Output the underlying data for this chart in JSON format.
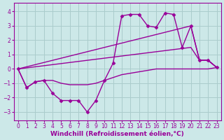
{
  "bg_color": "#cce8e8",
  "grid_color": "#aacccc",
  "line_color": "#990099",
  "markersize": 2.5,
  "linewidth": 1.0,
  "xlabel": "Windchill (Refroidissement éolien,°C)",
  "xlabel_fontsize": 6.5,
  "tick_fontsize": 5.5,
  "ylim": [
    -3.6,
    4.6
  ],
  "xlim": [
    -0.5,
    23.5
  ],
  "yticks": [
    -3,
    -2,
    -1,
    0,
    1,
    2,
    3,
    4
  ],
  "xticks": [
    0,
    1,
    2,
    3,
    4,
    5,
    6,
    7,
    8,
    9,
    10,
    11,
    12,
    13,
    14,
    15,
    16,
    17,
    18,
    19,
    20,
    21,
    22,
    23
  ],
  "lines": [
    {
      "x": [
        0,
        1,
        2,
        3,
        4,
        5,
        6,
        7,
        8,
        9,
        10,
        11,
        12,
        13,
        14,
        15,
        16,
        17,
        18,
        19,
        20,
        21,
        22,
        23
      ],
      "y": [
        0.0,
        -1.3,
        -0.9,
        -0.8,
        -0.8,
        -1.0,
        -1.1,
        -1.1,
        -1.1,
        -1.0,
        -0.8,
        -0.6,
        -0.4,
        -0.3,
        -0.2,
        -0.1,
        0.0,
        0.0,
        0.0,
        0.0,
        0.0,
        0.0,
        0.0,
        0.1
      ],
      "markers": false
    },
    {
      "x": [
        0,
        1,
        2,
        3,
        4,
        5,
        6,
        7,
        8,
        9,
        10,
        11,
        12,
        13,
        14,
        15,
        16,
        17,
        18,
        19,
        20,
        21,
        22,
        23
      ],
      "y": [
        0.0,
        -1.3,
        -0.9,
        -0.8,
        -1.7,
        -2.2,
        -2.2,
        -2.2,
        -3.0,
        -2.2,
        -0.8,
        0.4,
        3.7,
        3.8,
        3.8,
        3.0,
        2.9,
        3.9,
        3.8,
        1.5,
        3.0,
        0.6,
        0.6,
        0.1
      ],
      "markers": true
    },
    {
      "x": [
        0,
        20,
        21,
        22,
        23
      ],
      "y": [
        0.0,
        1.5,
        0.6,
        0.6,
        0.1
      ],
      "markers": false
    },
    {
      "x": [
        0,
        20,
        21,
        22,
        23
      ],
      "y": [
        0.0,
        3.0,
        0.6,
        0.6,
        0.1
      ],
      "markers": false
    }
  ]
}
